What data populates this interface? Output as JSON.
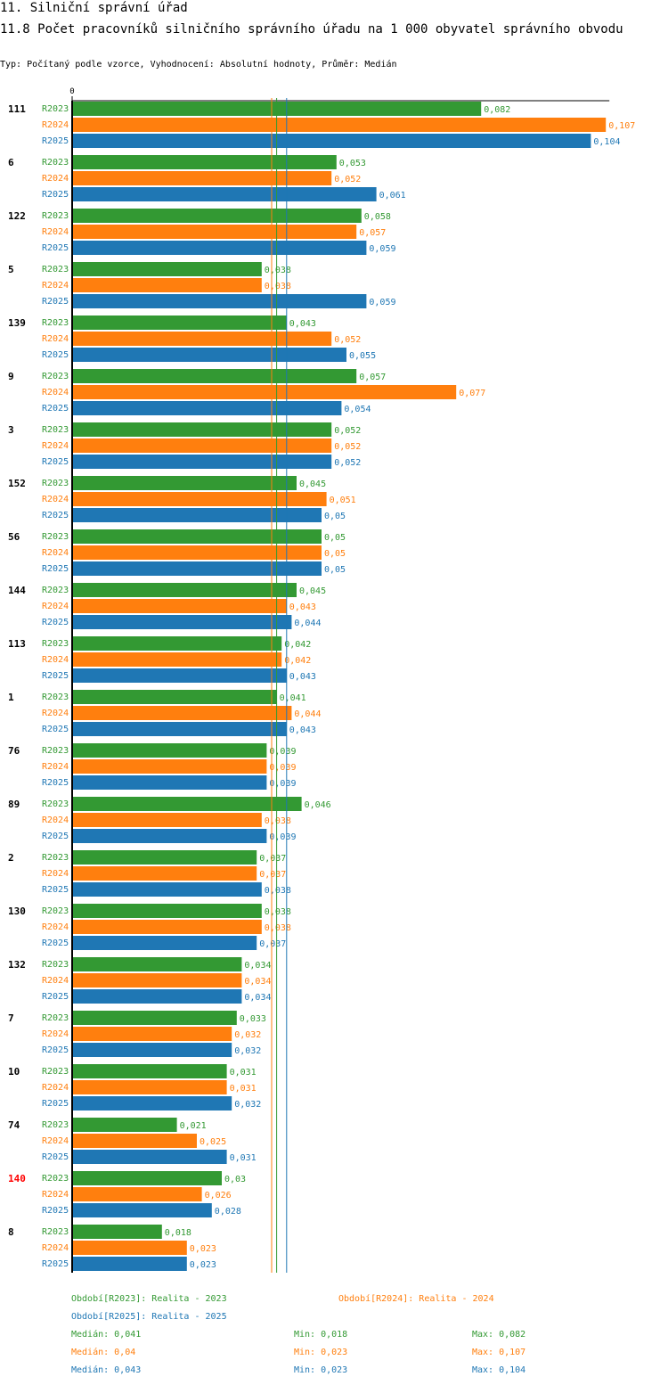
{
  "header": {
    "title": "11. Silniční správní úřad",
    "subtitle": "11.8 Počet pracovníků silničního správního úřadu na 1 000 obyvatel správního obvodu",
    "type_line": "Typ: Počítaný podle vzorce, Vyhodnocení: Absolutní hodnoty, Průměr: Medián"
  },
  "colors": {
    "R2023": "#339933",
    "R2024": "#ff7f0e",
    "R2025": "#1f77b4",
    "highlight": "#ff0000"
  },
  "chart_data": {
    "type": "bar",
    "orientation": "horizontal",
    "axis_zero_label": "0",
    "xlim": [
      0,
      0.107
    ],
    "categories": [
      "111",
      "6",
      "122",
      "5",
      "139",
      "9",
      "3",
      "152",
      "56",
      "144",
      "113",
      "1",
      "76",
      "89",
      "2",
      "130",
      "132",
      "7",
      "10",
      "74",
      "140",
      "8"
    ],
    "highlight_category": "140",
    "series": [
      {
        "name": "R2023",
        "values": [
          0.082,
          0.053,
          0.058,
          0.038,
          0.043,
          0.057,
          0.052,
          0.045,
          0.05,
          0.045,
          0.042,
          0.041,
          0.039,
          0.046,
          0.037,
          0.038,
          0.034,
          0.033,
          0.031,
          0.021,
          0.03,
          0.018
        ],
        "labels": [
          "0,082",
          "0,053",
          "0,058",
          "0,038",
          "0,043",
          "0,057",
          "0,052",
          "0,045",
          "0,05",
          "0,045",
          "0,042",
          "0,041",
          "0,039",
          "0,046",
          "0,037",
          "0,038",
          "0,034",
          "0,033",
          "0,031",
          "0,021",
          "0,03",
          "0,018"
        ]
      },
      {
        "name": "R2024",
        "values": [
          0.107,
          0.052,
          0.057,
          0.038,
          0.052,
          0.077,
          0.052,
          0.051,
          0.05,
          0.043,
          0.042,
          0.044,
          0.039,
          0.038,
          0.037,
          0.038,
          0.034,
          0.032,
          0.031,
          0.025,
          0.026,
          0.023
        ],
        "labels": [
          "0,107",
          "0,052",
          "0,057",
          "0,038",
          "0,052",
          "0,077",
          "0,052",
          "0,051",
          "0,05",
          "0,043",
          "0,042",
          "0,044",
          "0,039",
          "0,038",
          "0,037",
          "0,038",
          "0,034",
          "0,032",
          "0,031",
          "0,025",
          "0,026",
          "0,023"
        ]
      },
      {
        "name": "R2025",
        "values": [
          0.104,
          0.061,
          0.059,
          0.059,
          0.055,
          0.054,
          0.052,
          0.05,
          0.05,
          0.044,
          0.043,
          0.043,
          0.039,
          0.039,
          0.038,
          0.037,
          0.034,
          0.032,
          0.032,
          0.031,
          0.028,
          0.023
        ],
        "labels": [
          "0,104",
          "0,061",
          "0,059",
          "0,059",
          "0,055",
          "0,054",
          "0,052",
          "0,05",
          "0,05",
          "0,044",
          "0,043",
          "0,043",
          "0,039",
          "0,039",
          "0,038",
          "0,037",
          "0,034",
          "0,032",
          "0,032",
          "0,031",
          "0,028",
          "0,023"
        ]
      }
    ],
    "medians": {
      "R2023": 0.041,
      "R2024": 0.04,
      "R2025": 0.043
    },
    "legend": [
      {
        "series": "R2023",
        "text": "Období[R2023]: Realita - 2023"
      },
      {
        "series": "R2024",
        "text": "Období[R2024]: Realita - 2024"
      },
      {
        "series": "R2025",
        "text": "Období[R2025]: Realita - 2025"
      }
    ],
    "stats": [
      {
        "series": "R2023",
        "median": "Medián: 0,041",
        "min": "Min: 0,018",
        "max": "Max: 0,082"
      },
      {
        "series": "R2024",
        "median": "Medián: 0,04",
        "min": "Min: 0,023",
        "max": "Max: 0,107"
      },
      {
        "series": "R2025",
        "median": "Medián: 0,043",
        "min": "Min: 0,023",
        "max": "Max: 0,104"
      }
    ]
  }
}
